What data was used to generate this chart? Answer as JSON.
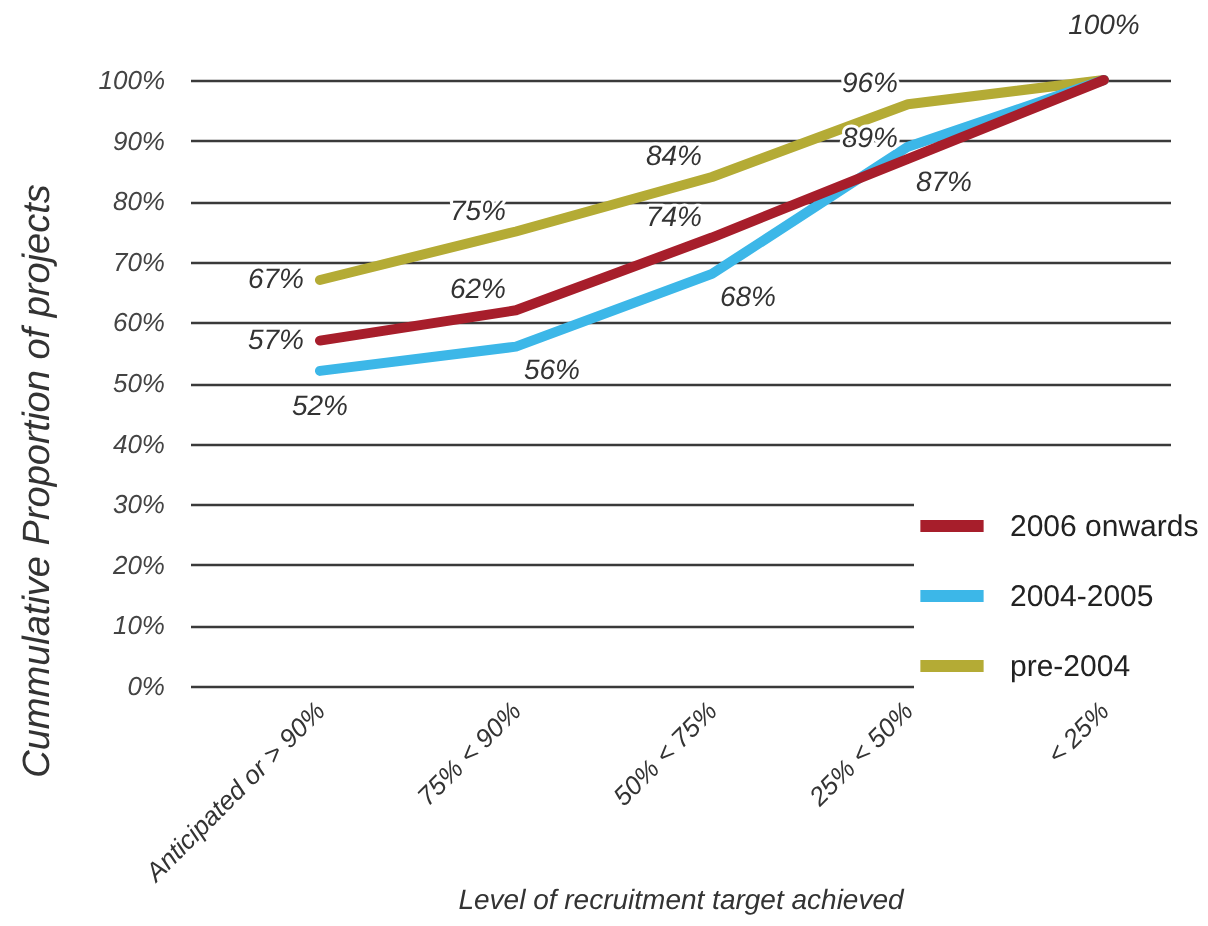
{
  "chart_data": {
    "type": "line",
    "xlabel": "Level of recruitment target achieved",
    "ylabel": "Cummulative Proportion of projects",
    "categories": [
      "Anticipated or > 90%",
      "75% < 90%",
      "50% < 75%",
      "25% < 50%",
      "< 25%"
    ],
    "series": [
      {
        "name": "2006 onwards",
        "color": "#a71e2b",
        "values": [
          57,
          62,
          74,
          87,
          100
        ],
        "value_labels": [
          "57%",
          "62%",
          "74%",
          "87%",
          null
        ]
      },
      {
        "name": "2004-2005",
        "color": "#3cb7e8",
        "values": [
          52,
          56,
          68,
          89,
          100
        ],
        "value_labels": [
          "52%",
          "56%",
          "68%",
          "89%",
          null
        ]
      },
      {
        "name": "pre-2004",
        "color": "#b4ab35",
        "values": [
          67,
          75,
          84,
          96,
          100
        ],
        "value_labels": [
          "67%",
          "75%",
          "84%",
          "96%",
          "100%"
        ]
      }
    ],
    "ylim": [
      0,
      100
    ],
    "yticks": [
      {
        "value": 0,
        "label": "0%"
      },
      {
        "value": 10,
        "label": "10%"
      },
      {
        "value": 20,
        "label": "20%"
      },
      {
        "value": 30,
        "label": "30%"
      },
      {
        "value": 40,
        "label": "40%"
      },
      {
        "value": 50,
        "label": "50%"
      },
      {
        "value": 60,
        "label": "60%"
      },
      {
        "value": 70,
        "label": "70%"
      },
      {
        "value": 80,
        "label": "80%"
      },
      {
        "value": 90,
        "label": "90%"
      },
      {
        "value": 100,
        "label": "100%"
      }
    ],
    "grid": "y",
    "legend": "bottom right",
    "line_style": "solid"
  }
}
